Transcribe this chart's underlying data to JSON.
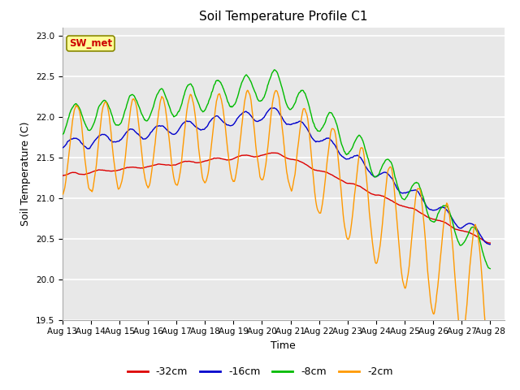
{
  "title": "Soil Temperature Profile C1",
  "xlabel": "Time",
  "ylabel": "Soil Temperature (C)",
  "ylim": [
    19.5,
    23.1
  ],
  "start_day": 13,
  "end_day": 28,
  "fig_bg_color": "#ffffff",
  "plot_bg_color": "#e8e8e8",
  "annotation_text": "SW_met",
  "annotation_bg": "#ffff99",
  "annotation_border": "#888800",
  "annotation_text_color": "#cc0000",
  "legend_labels": [
    "-32cm",
    "-16cm",
    "-8cm",
    "-2cm"
  ],
  "legend_colors": [
    "#dd0000",
    "#0000cc",
    "#00bb00",
    "#ff9900"
  ],
  "line_width": 1.0,
  "tick_label_size": 7.5,
  "axis_label_size": 9,
  "title_size": 11,
  "grid_color": "#d4d4d4",
  "yticks": [
    19.5,
    20.0,
    20.5,
    21.0,
    21.5,
    22.0,
    22.5,
    23.0
  ]
}
